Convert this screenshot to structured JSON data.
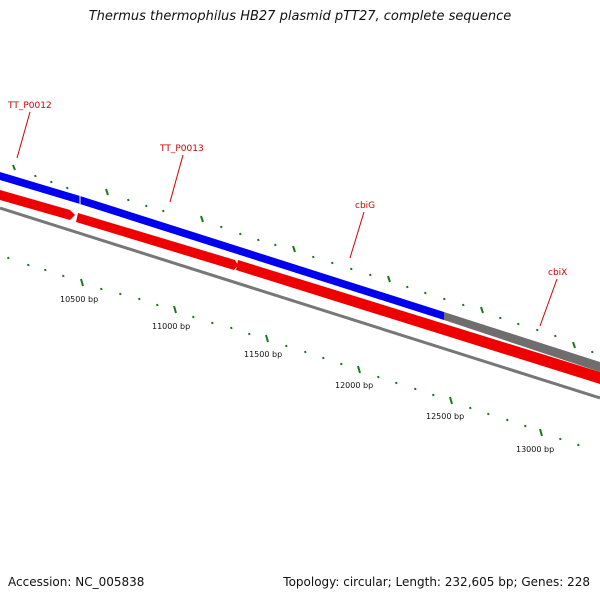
{
  "title": "Thermus thermophilus HB27 plasmid pTT27, complete sequence",
  "footer": {
    "accession": "Accession: NC_005838",
    "summary": "Topology: circular; Length: 232,605 bp; Genes: 228"
  },
  "colors": {
    "forward_strand": "#0000ee",
    "reverse_strand": "#ee0000",
    "other_feature": "#777777",
    "gene_label": "#cc0000",
    "ticks": "#1a7a1a"
  },
  "genes": [
    {
      "label": "TT_P0012"
    },
    {
      "label": "TT_P0013"
    },
    {
      "label": "cbiG"
    },
    {
      "label": "cbiX"
    }
  ],
  "bp_labels": [
    {
      "text": "10500 bp"
    },
    {
      "text": "11000 bp"
    },
    {
      "text": "11500 bp"
    },
    {
      "text": "12000 bp"
    },
    {
      "text": "12500 bp"
    },
    {
      "text": "13000 bp"
    }
  ]
}
